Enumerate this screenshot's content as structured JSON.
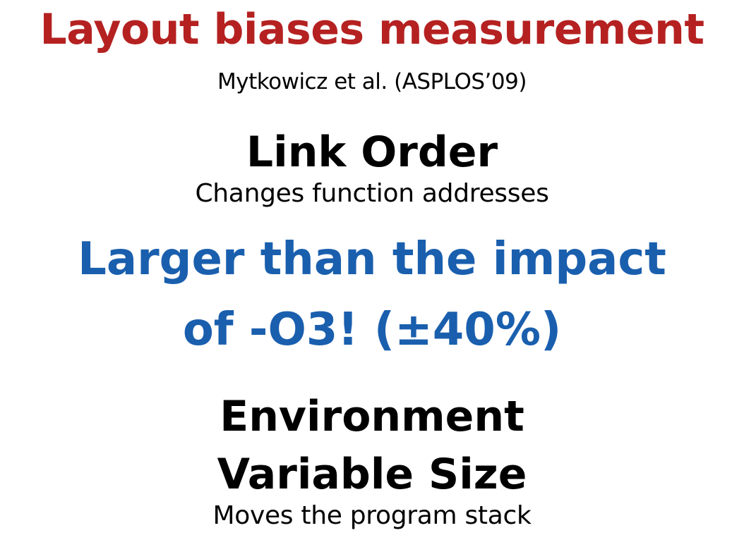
{
  "colors": {
    "title": "#b52121",
    "emphasis": "#1a5fae",
    "text": "#000000",
    "background": "#ffffff"
  },
  "slide": {
    "title": "Layout biases measurement",
    "citation": "Mytkowicz et al. (ASPLOS’09)",
    "link_order": {
      "heading": "Link Order",
      "description": "Changes function addresses"
    },
    "impact": {
      "line1": "Larger than the impact",
      "line2": "of -O3! (±40%)"
    },
    "environment": {
      "heading_line1": "Environment",
      "heading_line2": "Variable Size",
      "description": "Moves the program stack"
    }
  }
}
